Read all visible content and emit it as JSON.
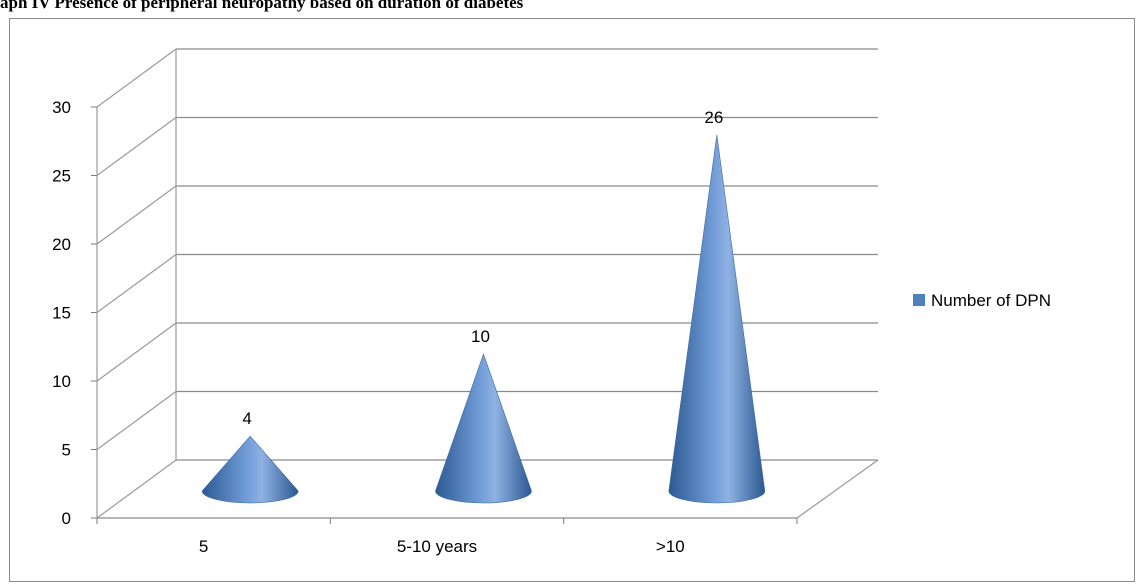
{
  "caption": "aph IV Presence of peripheral neuropathy based on duration of diabetes",
  "chart_data": {
    "type": "bar",
    "shape": "cone-3d",
    "categories": [
      "5",
      "5-10 years",
      ">10"
    ],
    "series": [
      {
        "name": "Number of DPN",
        "values": [
          4,
          10,
          26
        ]
      }
    ],
    "ylim": [
      0,
      30
    ],
    "yticks": [
      0,
      5,
      10,
      15,
      20,
      25,
      30
    ],
    "grid": true,
    "legend": "right",
    "color": "#4f81bd"
  }
}
